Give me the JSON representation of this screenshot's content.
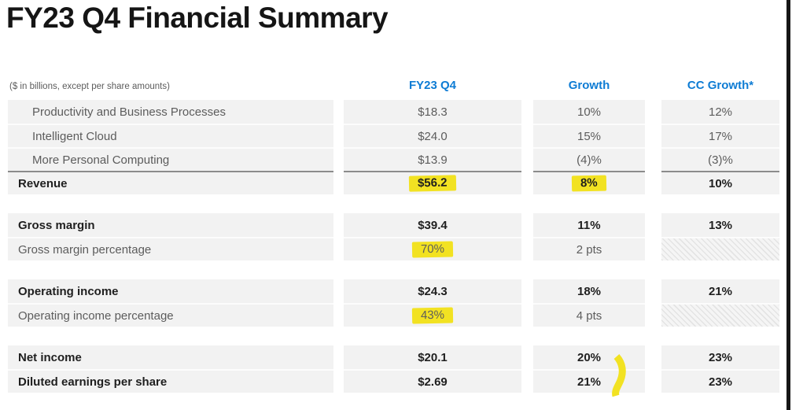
{
  "title": "FY23 Q4 Financial Summary",
  "units_note": "($ in billions, except per share amounts)",
  "columns": [
    "FY23 Q4",
    "Growth",
    "CC Growth*"
  ],
  "colors": {
    "header_blue": "#0e7cd4",
    "row_bg": "#f2f2f2",
    "highlight_yellow": "#f2e222",
    "total_line": "#8c8c8c",
    "text_dark": "#1f1f1f",
    "text_muted": "#5c5c5c",
    "edge_black": "#161616"
  },
  "table": {
    "groups": [
      {
        "rows": [
          {
            "label": "Productivity and Business Processes",
            "indent": true,
            "bold": false,
            "values": [
              "$18.3",
              "10%",
              "12%"
            ]
          },
          {
            "label": "Intelligent Cloud",
            "indent": true,
            "bold": false,
            "values": [
              "$24.0",
              "15%",
              "17%"
            ]
          },
          {
            "label": "More Personal Computing",
            "indent": true,
            "bold": false,
            "values": [
              "$13.9",
              "(4)%",
              "(3)%"
            ]
          },
          {
            "label": "Revenue",
            "indent": false,
            "bold": true,
            "total_line": true,
            "values": [
              "$56.2",
              "8%",
              "10%"
            ],
            "highlighted_columns": [
              0,
              1
            ]
          }
        ]
      },
      {
        "rows": [
          {
            "label": "Gross margin",
            "indent": false,
            "bold": true,
            "values": [
              "$39.4",
              "11%",
              "13%"
            ]
          },
          {
            "label": "Gross margin percentage",
            "indent": false,
            "bold": false,
            "values": [
              "70%",
              "2 pts",
              ""
            ],
            "highlighted_columns": [
              0
            ],
            "hatched_columns": [
              2
            ]
          }
        ]
      },
      {
        "rows": [
          {
            "label": "Operating income",
            "indent": false,
            "bold": true,
            "values": [
              "$24.3",
              "18%",
              "21%"
            ]
          },
          {
            "label": "Operating income percentage",
            "indent": false,
            "bold": false,
            "values": [
              "43%",
              "4 pts",
              ""
            ],
            "highlighted_columns": [
              0
            ],
            "hatched_columns": [
              2
            ]
          }
        ]
      },
      {
        "rows": [
          {
            "label": "Net income",
            "indent": false,
            "bold": true,
            "values": [
              "$20.1",
              "20%",
              "23%"
            ]
          },
          {
            "label": "Diluted earnings per share",
            "indent": false,
            "bold": true,
            "values": [
              "$2.69",
              "21%",
              "23%"
            ]
          }
        ]
      }
    ]
  },
  "annotations": {
    "squiggle_marker": "hand-drawn yellow marker stroke beside Growth values for Net income and Diluted earnings per share"
  }
}
